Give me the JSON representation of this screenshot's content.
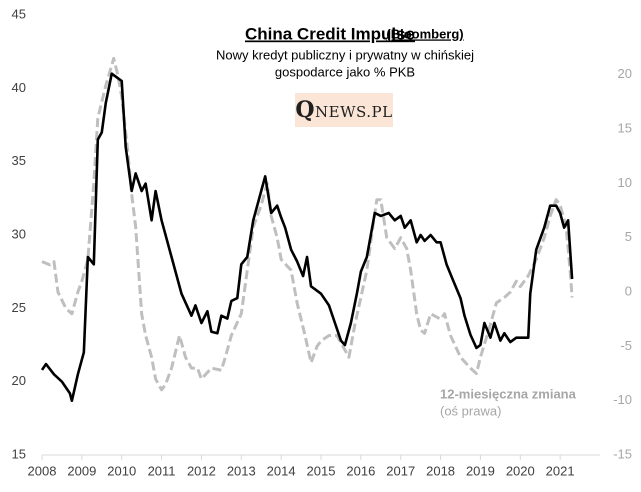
{
  "chart_data": {
    "type": "line",
    "title": "China Credit Impulse",
    "title_note": "(Bloomberg)",
    "subtitle": [
      "Nowy kredyt publiczny i prywatny w chińskiej",
      "gospodarce jako % PKB"
    ],
    "logo": "QNEWS.PL",
    "annotation": [
      "12-miesięczna zmiana",
      "(oś prawa)"
    ],
    "xlim": [
      2008,
      2022
    ],
    "xticks": [
      2008,
      2009,
      2010,
      2011,
      2012,
      2013,
      2014,
      2015,
      2016,
      2017,
      2018,
      2019,
      2020,
      2021
    ],
    "ylim": [
      15,
      45
    ],
    "yticks": [
      15,
      20,
      25,
      30,
      35,
      40,
      45
    ],
    "y2lim": [
      -15,
      25.5
    ],
    "y2ticks": [
      -15,
      -10,
      -5,
      0,
      5,
      10,
      15,
      20
    ],
    "series": [
      {
        "color": "#000000",
        "dashed": false,
        "x": [
          2008.0,
          2008.1,
          2008.3,
          2008.5,
          2008.7,
          2008.75,
          2008.9,
          2009.05,
          2009.15,
          2009.3,
          2009.4,
          2009.5,
          2009.6,
          2009.75,
          2009.9,
          2010.0,
          2010.1,
          2010.25,
          2010.35,
          2010.5,
          2010.6,
          2010.75,
          2010.85,
          2011.0,
          2011.25,
          2011.5,
          2011.75,
          2011.85,
          2012.0,
          2012.15,
          2012.25,
          2012.4,
          2012.5,
          2012.65,
          2012.75,
          2012.9,
          2013.0,
          2013.15,
          2013.3,
          2013.5,
          2013.6,
          2013.75,
          2013.9,
          2014.0,
          2014.1,
          2014.25,
          2014.4,
          2014.55,
          2014.65,
          2014.75,
          2015.0,
          2015.2,
          2015.35,
          2015.5,
          2015.6,
          2015.75,
          2015.9,
          2016.0,
          2016.15,
          2016.25,
          2016.35,
          2016.5,
          2016.7,
          2016.85,
          2017.0,
          2017.1,
          2017.25,
          2017.4,
          2017.5,
          2017.6,
          2017.75,
          2017.9,
          2018.0,
          2018.15,
          2018.3,
          2018.5,
          2018.6,
          2018.75,
          2018.9,
          2019.0,
          2019.1,
          2019.25,
          2019.35,
          2019.5,
          2019.6,
          2019.75,
          2019.9,
          2020.0,
          2020.2,
          2020.25,
          2020.4,
          2020.6,
          2020.75,
          2020.9,
          2021.0,
          2021.1,
          2021.2,
          2021.3
        ],
        "values": [
          20.8,
          21.2,
          20.5,
          20.0,
          19.2,
          18.7,
          20.5,
          22,
          28.5,
          28,
          36.5,
          37,
          39,
          41,
          40.7,
          40.5,
          36,
          33,
          34.2,
          33,
          33.5,
          31,
          33,
          31,
          28.5,
          26,
          24.5,
          25.2,
          24,
          24.8,
          23.4,
          23.3,
          24.5,
          24.3,
          25.5,
          25.7,
          28,
          28.5,
          31,
          33,
          34,
          31.5,
          32,
          31.2,
          30.5,
          29,
          28.2,
          27.2,
          28.5,
          26.5,
          26,
          25.2,
          24,
          22.8,
          22.5,
          24,
          26,
          27.5,
          28.5,
          30,
          31.5,
          31.3,
          31.5,
          31,
          31.3,
          30.5,
          31,
          29.5,
          30,
          29.6,
          30,
          29.5,
          29.5,
          28,
          27,
          25.7,
          24.5,
          23.2,
          22.3,
          22.5,
          24,
          23,
          24,
          22.8,
          23.3,
          22.7,
          23,
          23,
          23,
          26,
          29,
          30.5,
          32,
          32,
          31.5,
          30.5,
          31,
          27
        ]
      },
      {
        "name": "12-miesięczna zmiana",
        "color": "#bfbfbf",
        "dashed": true,
        "axis": "y2",
        "x": [
          2008.0,
          2008.2,
          2008.3,
          2008.4,
          2008.6,
          2008.75,
          2008.9,
          2009.0,
          2009.15,
          2009.3,
          2009.4,
          2009.6,
          2009.8,
          2009.9,
          2010.0,
          2010.15,
          2010.25,
          2010.35,
          2010.5,
          2010.6,
          2010.75,
          2010.85,
          2011.0,
          2011.1,
          2011.25,
          2011.45,
          2011.6,
          2011.75,
          2011.9,
          2012.0,
          2012.25,
          2012.5,
          2012.6,
          2012.75,
          2013.0,
          2013.15,
          2013.3,
          2013.5,
          2013.65,
          2013.75,
          2013.9,
          2014.0,
          2014.25,
          2014.4,
          2014.6,
          2014.75,
          2014.9,
          2015.0,
          2015.2,
          2015.4,
          2015.55,
          2015.7,
          2015.85,
          2016.0,
          2016.15,
          2016.3,
          2016.4,
          2016.5,
          2016.65,
          2016.85,
          2017.0,
          2017.15,
          2017.25,
          2017.4,
          2017.5,
          2017.6,
          2017.75,
          2018.0,
          2018.1,
          2018.25,
          2018.5,
          2018.75,
          2018.9,
          2019.0,
          2019.25,
          2019.4,
          2019.6,
          2019.75,
          2019.9,
          2020.0,
          2020.2,
          2020.4,
          2020.6,
          2020.75,
          2020.9,
          2021.0,
          2021.15,
          2021.25,
          2021.3
        ],
        "values": [
          2.8,
          2.5,
          2.8,
          0,
          -1.5,
          -2,
          0,
          1,
          3,
          10,
          16,
          19,
          21.5,
          20,
          18,
          13,
          9,
          6,
          -2,
          -4,
          -6,
          -8,
          -9,
          -8.5,
          -7,
          -4,
          -6,
          -7,
          -7,
          -8,
          -7,
          -7.2,
          -6,
          -4,
          -2,
          2,
          6,
          8,
          10,
          7,
          5,
          3,
          2,
          -1,
          -4,
          -6.5,
          -5,
          -4.5,
          -4,
          -4,
          -5,
          -6,
          -3,
          -0.5,
          2,
          6,
          8.5,
          8.5,
          5,
          4,
          5,
          4,
          2,
          -2,
          -3.5,
          -3.8,
          -2,
          -2.5,
          -2,
          -4,
          -6,
          -7,
          -7.5,
          -6,
          -3,
          -1,
          -0.5,
          0,
          1,
          0.5,
          1.5,
          3,
          5,
          7,
          8.5,
          8,
          6,
          2,
          -0.5
        ]
      }
    ]
  }
}
